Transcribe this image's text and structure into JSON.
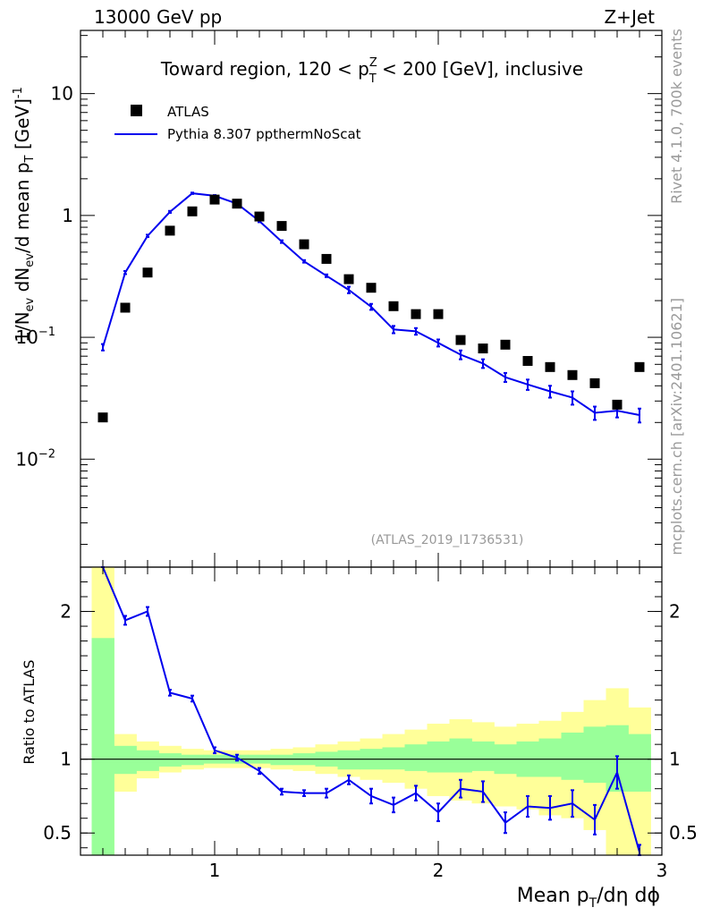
{
  "header": {
    "left": "13000 GeV pp",
    "right": "Z+Jet"
  },
  "side_labels": {
    "top": "Rivet 4.1.0,  700k events",
    "bottom": "mcplots.cern.ch [arXiv:2401.10621]"
  },
  "chart_data": [
    {
      "type": "scatter",
      "title": "Toward region, 120 < p_T^Z < 200 [GeV], inclusive",
      "title_parts": {
        "a": "Toward region, 120 < p",
        "sup": "Z",
        "sub": "T",
        "b": " < 200 [GeV], inclusive"
      },
      "ylabel": "1/N_ev dN_ev/d mean p_T [GeV]^-1",
      "ylabel_parts": {
        "p1": "1/N",
        "s1": "ev",
        "p2": " dN",
        "s2": "ev",
        "p3": "/d mean p",
        "s3": "T",
        "p4": " [GeV]",
        "sup": "-1"
      },
      "yscale": "log",
      "ylim": [
        0.0013,
        33
      ],
      "xlim": [
        0.4,
        3.0
      ],
      "yticks": [
        {
          "value": 10,
          "label": "10"
        },
        {
          "value": 1,
          "label": "1"
        },
        {
          "value": 0.1,
          "label": "10",
          "exp": "−1"
        },
        {
          "value": 0.01,
          "label": "10",
          "exp": "−2"
        }
      ],
      "watermark": "(ATLAS_2019_I1736531)",
      "legend_position": "top-left",
      "series": [
        {
          "name": "ATLAS",
          "style": "markers",
          "color": "#000000",
          "x": [
            0.5,
            0.6,
            0.7,
            0.8,
            0.9,
            1.0,
            1.1,
            1.2,
            1.3,
            1.4,
            1.5,
            1.6,
            1.7,
            1.8,
            1.9,
            2.0,
            2.1,
            2.2,
            2.3,
            2.4,
            2.5,
            2.6,
            2.7,
            2.8,
            2.9
          ],
          "values": [
            0.022,
            0.175,
            0.34,
            0.75,
            1.08,
            1.35,
            1.25,
            0.98,
            0.82,
            0.58,
            0.44,
            0.3,
            0.255,
            0.18,
            0.155,
            0.155,
            0.095,
            0.081,
            0.087,
            0.064,
            0.057,
            0.049,
            0.042,
            0.028,
            0.057
          ]
        },
        {
          "name": "Pythia 8.307 ppthermNoScat",
          "style": "line",
          "color": "#0000ee",
          "x": [
            0.5,
            0.6,
            0.7,
            0.8,
            0.9,
            1.0,
            1.1,
            1.2,
            1.3,
            1.4,
            1.5,
            1.6,
            1.7,
            1.8,
            1.9,
            2.0,
            2.1,
            2.2,
            2.3,
            2.4,
            2.5,
            2.6,
            2.7,
            2.8,
            2.9
          ],
          "values": [
            0.083,
            0.34,
            0.68,
            1.07,
            1.52,
            1.45,
            1.25,
            0.9,
            0.61,
            0.42,
            0.32,
            0.245,
            0.178,
            0.116,
            0.112,
            0.09,
            0.072,
            0.061,
            0.047,
            0.041,
            0.036,
            0.032,
            0.024,
            0.025,
            0.023
          ],
          "errors": [
            0.005,
            0.01,
            0.015,
            0.02,
            0.02,
            0.02,
            0.02,
            0.02,
            0.015,
            0.01,
            0.008,
            0.015,
            0.01,
            0.008,
            0.007,
            0.006,
            0.006,
            0.005,
            0.004,
            0.004,
            0.004,
            0.004,
            0.003,
            0.003,
            0.003
          ]
        }
      ]
    },
    {
      "type": "line",
      "ylabel": "Ratio to ATLAS",
      "xlabel": "Mean p_T/dη dϕ",
      "xlabel_parts": {
        "a": "Mean p",
        "sub": "T",
        "b": "/dη dϕ"
      },
      "ylim": [
        0.35,
        2.3
      ],
      "xlim": [
        0.4,
        3.0
      ],
      "yticks": [
        {
          "value": 2,
          "label": "2"
        },
        {
          "value": 1,
          "label": "1"
        },
        {
          "value": 0.5,
          "label": "0.5"
        }
      ],
      "xticks": [
        {
          "value": 1,
          "label": "1"
        },
        {
          "value": 2,
          "label": "2"
        },
        {
          "value": 3,
          "label": "3"
        }
      ],
      "reference_line": 1,
      "bin_edges": [
        0.45,
        0.55,
        0.65,
        0.75,
        0.85,
        0.95,
        1.05,
        1.15,
        1.25,
        1.35,
        1.45,
        1.55,
        1.65,
        1.75,
        1.85,
        1.95,
        2.05,
        2.15,
        2.25,
        2.35,
        2.45,
        2.55,
        2.65,
        2.75,
        2.85,
        2.95
      ],
      "bands": [
        {
          "name": "total uncertainty",
          "color": "#ffff99",
          "low": [
            0.3,
            0.78,
            0.87,
            0.91,
            0.93,
            0.94,
            0.94,
            0.94,
            0.93,
            0.92,
            0.9,
            0.88,
            0.86,
            0.84,
            0.8,
            0.75,
            0.72,
            0.7,
            0.68,
            0.66,
            0.62,
            0.6,
            0.52,
            0.35,
            0.35
          ],
          "high": [
            2.4,
            1.17,
            1.12,
            1.09,
            1.07,
            1.06,
            1.06,
            1.06,
            1.07,
            1.08,
            1.1,
            1.12,
            1.14,
            1.17,
            1.2,
            1.24,
            1.27,
            1.25,
            1.22,
            1.24,
            1.26,
            1.32,
            1.4,
            1.48,
            1.35
          ]
        },
        {
          "name": "statistical uncertainty",
          "color": "#99ff99",
          "low": [
            0.3,
            0.9,
            0.92,
            0.95,
            0.96,
            0.97,
            0.97,
            0.97,
            0.96,
            0.96,
            0.95,
            0.93,
            0.93,
            0.93,
            0.92,
            0.91,
            0.91,
            0.92,
            0.9,
            0.88,
            0.88,
            0.86,
            0.84,
            0.78,
            0.78
          ],
          "high": [
            1.82,
            1.09,
            1.06,
            1.04,
            1.03,
            1.03,
            1.03,
            1.03,
            1.03,
            1.04,
            1.05,
            1.06,
            1.07,
            1.08,
            1.1,
            1.12,
            1.14,
            1.12,
            1.1,
            1.12,
            1.14,
            1.18,
            1.22,
            1.23,
            1.17
          ]
        }
      ],
      "series": [
        {
          "name": "Pythia 8.307 ppthermNoScat / ATLAS",
          "color": "#0000ee",
          "x": [
            0.5,
            0.6,
            0.7,
            0.8,
            0.9,
            1.0,
            1.1,
            1.2,
            1.3,
            1.4,
            1.5,
            1.6,
            1.7,
            1.8,
            1.9,
            2.0,
            2.1,
            2.2,
            2.3,
            2.4,
            2.5,
            2.6,
            2.7,
            2.8,
            2.9
          ],
          "values": [
            3.8,
            1.94,
            2.0,
            1.45,
            1.41,
            1.06,
            1.01,
            0.92,
            0.78,
            0.77,
            0.77,
            0.86,
            0.75,
            0.69,
            0.77,
            0.64,
            0.8,
            0.78,
            0.57,
            0.68,
            0.67,
            0.7,
            0.59,
            0.91,
            0.37
          ],
          "errors": [
            0.05,
            0.03,
            0.03,
            0.02,
            0.02,
            0.02,
            0.02,
            0.02,
            0.02,
            0.02,
            0.03,
            0.03,
            0.05,
            0.05,
            0.05,
            0.06,
            0.06,
            0.07,
            0.07,
            0.07,
            0.08,
            0.09,
            0.1,
            0.11,
            0.05
          ]
        }
      ]
    }
  ]
}
